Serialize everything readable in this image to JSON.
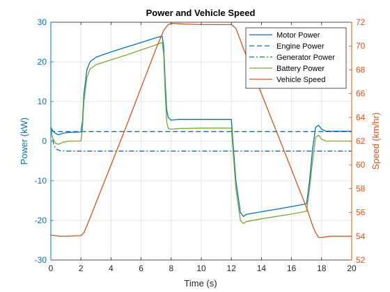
{
  "colors": {
    "motor": "#0072BD",
    "engine": "#0072BD",
    "generator": "#0072BD",
    "battery": "#77AC30",
    "speed": "#D95319",
    "left_axis": "#0072BD",
    "right_axis": "#D95319",
    "grid": "#e6e6e6",
    "frame": "#262626"
  },
  "chart_data": {
    "type": "line",
    "title": "Power and Vehicle Speed",
    "xlabel": "Time (s)",
    "ylabel_left": "Power (kW)",
    "ylabel_right": "Speed (km/hr)",
    "xlim": [
      0,
      20
    ],
    "ylim_left": [
      -30,
      30
    ],
    "ylim_right": [
      52,
      72
    ],
    "xticks": [
      "0",
      "2",
      "4",
      "6",
      "8",
      "10",
      "12",
      "14",
      "16",
      "18",
      "20"
    ],
    "yticks_left": [
      "-30",
      "-20",
      "-10",
      "0",
      "10",
      "20",
      "30"
    ],
    "yticks_right": [
      "52",
      "54",
      "56",
      "58",
      "60",
      "62",
      "64",
      "66",
      "68",
      "70",
      "72"
    ],
    "grid": true,
    "legend_position": "top-right",
    "series": [
      {
        "name": "Motor Power",
        "axis": "left",
        "style": "solid",
        "color_key": "motor",
        "x": [
          0,
          0.15,
          0.3,
          0.5,
          0.8,
          1.2,
          2.0,
          2.1,
          2.2,
          2.4,
          2.6,
          3.0,
          4.0,
          5.0,
          6.0,
          7.0,
          7.4,
          7.5,
          7.6,
          7.7,
          7.8,
          8.0,
          8.5,
          10.0,
          12.0,
          12.1,
          12.3,
          12.6,
          12.8,
          13.0,
          14.0,
          15.0,
          16.0,
          17.0,
          17.2,
          17.4,
          17.6,
          17.8,
          18.0,
          18.3,
          19.0,
          20.0
        ],
        "y": [
          3.5,
          2.5,
          2.0,
          1.6,
          2.0,
          2.2,
          2.3,
          5,
          12,
          18,
          20,
          21.2,
          22.5,
          23.7,
          24.9,
          26.1,
          26.5,
          24,
          15,
          8,
          6,
          5.3,
          5.5,
          5.5,
          5.5,
          0,
          -10,
          -18,
          -19,
          -18.5,
          -17.8,
          -17.2,
          -16.5,
          -15.8,
          -10,
          -2,
          3.5,
          4,
          3,
          2.5,
          2.5,
          2.5
        ]
      },
      {
        "name": "Engine Power",
        "axis": "left",
        "style": "dash",
        "color_key": "engine",
        "x": [
          0,
          0.1,
          0.3,
          0.5,
          1.0,
          2.0,
          20.0
        ],
        "y": [
          2.8,
          2.5,
          2.4,
          2.4,
          2.4,
          2.4,
          2.4
        ]
      },
      {
        "name": "Generator Power",
        "axis": "left",
        "style": "dashdot",
        "color_key": "generator",
        "x": [
          0,
          0.1,
          0.2,
          0.35,
          0.6,
          1.0,
          20.0
        ],
        "y": [
          3.0,
          1.0,
          -1.0,
          -2.0,
          -2.4,
          -2.5,
          -2.5
        ]
      },
      {
        "name": "Battery Power",
        "axis": "left",
        "style": "solid",
        "color_key": "battery",
        "x": [
          0,
          0.1,
          0.3,
          0.5,
          0.8,
          1.2,
          2.0,
          2.1,
          2.2,
          2.4,
          2.6,
          3.0,
          4.0,
          5.0,
          6.0,
          7.0,
          7.4,
          7.5,
          7.6,
          7.7,
          7.8,
          8.0,
          8.5,
          10.0,
          12.0,
          12.1,
          12.3,
          12.6,
          12.8,
          13.0,
          14.0,
          15.0,
          16.0,
          17.0,
          17.2,
          17.4,
          17.6,
          17.8,
          18.0,
          18.3,
          19.0,
          20.0
        ],
        "y": [
          3.0,
          1.0,
          -0.5,
          -0.8,
          -0.3,
          0,
          0,
          3,
          10,
          16,
          18.2,
          19.3,
          20.5,
          21.7,
          23.0,
          24.3,
          24.9,
          22,
          12,
          5,
          3.2,
          3.0,
          3.2,
          3.3,
          3.3,
          -2,
          -12,
          -20,
          -20.8,
          -20.3,
          -19.6,
          -19.0,
          -18.4,
          -17.7,
          -12,
          -5,
          1,
          1.5,
          0.5,
          0,
          0,
          0
        ]
      },
      {
        "name": "Vehicle Speed",
        "axis": "right",
        "style": "solid",
        "color_key": "speed",
        "x": [
          0,
          0.3,
          0.6,
          1.0,
          2.0,
          2.2,
          2.5,
          3.0,
          4.0,
          5.0,
          6.0,
          7.0,
          7.5,
          7.8,
          8.0,
          9.0,
          10.0,
          11.0,
          12.0,
          12.3,
          12.8,
          14.0,
          15.0,
          16.0,
          17.0,
          17.4,
          17.6,
          17.8,
          18.0,
          18.3,
          18.6,
          19.0,
          20.0
        ],
        "y": [
          54.1,
          54.05,
          54.0,
          54.0,
          54.05,
          54.3,
          55.2,
          56.8,
          60.0,
          63.2,
          66.5,
          69.8,
          71.3,
          71.8,
          71.9,
          71.85,
          71.8,
          71.8,
          71.8,
          71.5,
          69.8,
          66.0,
          62.8,
          59.6,
          56.4,
          54.9,
          54.3,
          53.9,
          53.9,
          53.95,
          54.0,
          54.0,
          54.0
        ]
      }
    ]
  }
}
